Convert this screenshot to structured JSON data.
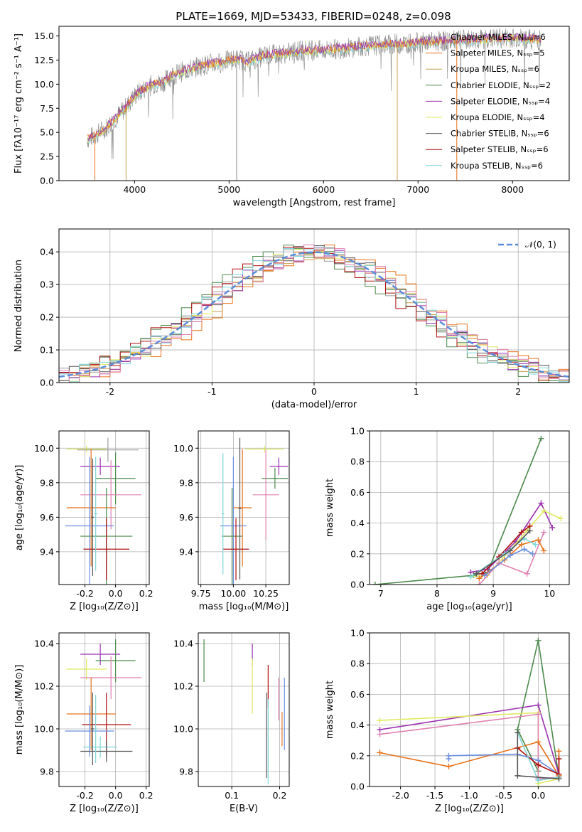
{
  "figure": {
    "title": "PLATE=1669, MJD=53433, FIBERID=0248, z=0.098",
    "colors": {
      "chabrier_miles": "#9e9e9e",
      "salpeter_miles": "#e8711a",
      "kroupa_miles": "#c8a050",
      "chabrier_elodie": "#4c8a4c",
      "salpeter_elodie": "#9b30b0",
      "kroupa_elodie": "#e0ea60",
      "chabrier_stelib": "#555555",
      "salpeter_stelib": "#b01010",
      "kroupa_stelib": "#7fd4d8",
      "normal_curve": "#5b8ddb",
      "extra_pink": "#e080b0",
      "extra_blue": "#6a8fe0"
    }
  },
  "chart_data": [
    {
      "id": "spectrum",
      "type": "line",
      "title": "PLATE=1669, MJD=53433, FIBERID=0248, z=0.098",
      "xlabel": "wavelength [Angstrom, rest frame]",
      "ylabel": "Flux [fλ10⁻¹⁷ erg cm⁻² s⁻¹ A⁻¹]",
      "xlim": [
        3200,
        8600
      ],
      "ylim": [
        0,
        16
      ],
      "xticks": [
        4000,
        5000,
        6000,
        7000,
        8000
      ],
      "yticks": [
        0.0,
        2.5,
        5.0,
        7.5,
        10.0,
        12.5,
        15.0
      ],
      "legend_position": "top-right",
      "legend": [
        {
          "label": "Chabrier MILES, Nₛₛₚ=6",
          "color": "#9e9e9e"
        },
        {
          "label": "Salpeter MILES, Nₛₛₚ=5",
          "color": "#e8711a"
        },
        {
          "label": "Kroupa MILES, Nₛₛₚ=6",
          "color": "#c8a050"
        },
        {
          "label": "Chabrier ELODIE, Nₛₛₚ=2",
          "color": "#4c8a4c"
        },
        {
          "label": "Salpeter ELODIE, Nₛₛₚ=4",
          "color": "#9b30b0"
        },
        {
          "label": "Kroupa ELODIE, Nₛₛₚ=4",
          "color": "#e0ea60"
        },
        {
          "label": "Chabrier STELIB, Nₛₛₚ=6",
          "color": "#555555"
        },
        {
          "label": "Salpeter STELIB, Nₛₛₚ=6",
          "color": "#b01010"
        },
        {
          "label": "Kroupa STELIB, Nₛₛₚ=6",
          "color": "#7fd4d8"
        }
      ],
      "continuum_points": [
        [
          3500,
          4.3
        ],
        [
          3600,
          4.8
        ],
        [
          3700,
          5.5
        ],
        [
          3800,
          6.5
        ],
        [
          3900,
          7.5
        ],
        [
          4000,
          8.8
        ],
        [
          4100,
          9.5
        ],
        [
          4200,
          10.0
        ],
        [
          4300,
          10.2
        ],
        [
          4400,
          10.9
        ],
        [
          4500,
          11.3
        ],
        [
          4600,
          11.6
        ],
        [
          4700,
          11.9
        ],
        [
          4800,
          12.1
        ],
        [
          4900,
          12.2
        ],
        [
          5000,
          12.5
        ],
        [
          5100,
          12.6
        ],
        [
          5200,
          12.3
        ],
        [
          5300,
          12.7
        ],
        [
          5400,
          13.0
        ],
        [
          5500,
          13.1
        ],
        [
          5600,
          13.2
        ],
        [
          5800,
          13.5
        ],
        [
          6000,
          13.5
        ],
        [
          6200,
          13.7
        ],
        [
          6500,
          14.0
        ],
        [
          6800,
          14.2
        ],
        [
          7000,
          14.3
        ],
        [
          7200,
          14.4
        ],
        [
          7500,
          14.6
        ],
        [
          7800,
          14.7
        ],
        [
          8000,
          14.8
        ],
        [
          8300,
          14.6
        ]
      ],
      "spikes": [
        [
          3580,
          0.0
        ],
        [
          3910,
          0.0
        ],
        [
          5080,
          0.0
        ],
        [
          6780,
          0.0
        ],
        [
          7410,
          0.0
        ]
      ]
    },
    {
      "id": "residuals",
      "type": "line",
      "xlabel": "(data-model)/error",
      "ylabel": "Normed distribution",
      "xlim": [
        -2.5,
        2.5
      ],
      "ylim": [
        0,
        0.47
      ],
      "xticks": [
        -2,
        -1,
        0,
        1,
        2
      ],
      "yticks": [
        0.0,
        0.1,
        0.2,
        0.3,
        0.4
      ],
      "grid": true,
      "legend_position": "top-right",
      "legend": [
        {
          "label": "𝒩(0, 1)",
          "color": "#5b8ddb"
        }
      ],
      "normal": {
        "mean": 0,
        "std": 1
      }
    },
    {
      "id": "age_vs_Z",
      "type": "scatter",
      "xlabel": "Z [log₁₀(Z/Z⊙)]",
      "ylabel": "age  [log₁₀(age/yr)]",
      "xlim": [
        -0.37,
        0.22
      ],
      "ylim": [
        9.21,
        10.1
      ],
      "xticks": [
        -0.2,
        0.0,
        0.2
      ],
      "yticks": [
        9.4,
        9.6,
        9.8,
        10.0
      ],
      "grid": true,
      "points": [
        {
          "x": -0.19,
          "y": 9.995,
          "x_err": 0.13,
          "y_err": 0.02,
          "color": "#e0ea60"
        },
        {
          "x": -0.1,
          "y": 9.895,
          "x_err": 0.13,
          "y_err": 0.05,
          "color": "#9b30b0"
        },
        {
          "x": -0.05,
          "y": 9.99,
          "x_err": 0.2,
          "y_err": 0.07,
          "color": "#9e9e9e"
        },
        {
          "x": 0.0,
          "y": 9.825,
          "x_err": 0.13,
          "y_err": 0.15,
          "color": "#4c8a4c"
        },
        {
          "x": -0.03,
          "y": 9.73,
          "x_err": 0.2,
          "y_err": 0.2,
          "color": "#e080b0"
        },
        {
          "x": -0.16,
          "y": 9.655,
          "x_err": 0.16,
          "y_err": 0.34,
          "color": "#e8711a"
        },
        {
          "x": -0.17,
          "y": 9.55,
          "x_err": 0.16,
          "y_err": 0.4,
          "color": "#6a8fe0"
        },
        {
          "x": -0.06,
          "y": 9.49,
          "x_err": 0.17,
          "y_err": 0.28,
          "color": "#4c8a4c"
        },
        {
          "x": -0.06,
          "y": 9.415,
          "x_err": 0.15,
          "y_err": 0.18,
          "color": "#b01010"
        },
        {
          "x": -0.15,
          "y": 9.6,
          "x_err": 0.01,
          "y_err": 0.34,
          "color": "#555555"
        },
        {
          "x": -0.13,
          "y": 9.62,
          "x_err": 0.01,
          "y_err": 0.33,
          "color": "#7fd4d8"
        }
      ]
    },
    {
      "id": "age_vs_mass",
      "type": "scatter",
      "xlabel": "mass [log₁₀(M/M⊙)]",
      "ylabel": "",
      "xlim": [
        9.73,
        10.43
      ],
      "ylim": [
        9.21,
        10.1
      ],
      "xticks": [
        9.75,
        10.0,
        10.25
      ],
      "yticks": [
        9.4,
        9.6,
        9.8,
        10.0
      ],
      "grid": true,
      "points": [
        {
          "x": 10.24,
          "y": 9.995,
          "x_err": 0.15,
          "y_err": 0.02,
          "color": "#e0ea60"
        },
        {
          "x": 10.35,
          "y": 9.895,
          "x_err": 0.07,
          "y_err": 0.05,
          "color": "#9b30b0"
        },
        {
          "x": 10.32,
          "y": 9.825,
          "x_err": 0.1,
          "y_err": 0.06,
          "color": "#4c8a4c"
        },
        {
          "x": 10.25,
          "y": 9.73,
          "x_err": 0.1,
          "y_err": 0.26,
          "color": "#e080b0"
        },
        {
          "x": 10.07,
          "y": 9.655,
          "x_err": 0.07,
          "y_err": 0.34,
          "color": "#e8711a"
        },
        {
          "x": 10.0,
          "y": 9.55,
          "x_err": 0.1,
          "y_err": 0.4,
          "color": "#6a8fe0"
        },
        {
          "x": 9.99,
          "y": 9.49,
          "x_err": 0.08,
          "y_err": 0.28,
          "color": "#4c8a4c"
        },
        {
          "x": 10.02,
          "y": 9.415,
          "x_err": 0.1,
          "y_err": 0.18,
          "color": "#b01010"
        },
        {
          "x": 10.05,
          "y": 9.65,
          "x_err": 0.01,
          "y_err": 0.41,
          "color": "#555555"
        },
        {
          "x": 9.92,
          "y": 9.62,
          "x_err": 0.01,
          "y_err": 0.35,
          "color": "#7fd4d8"
        }
      ]
    },
    {
      "id": "mass_weight_vs_age",
      "type": "line",
      "xlabel": "age  [log₁₀(age/yr)]",
      "ylabel": "mass weight",
      "xlim": [
        6.8,
        10.35
      ],
      "ylim": [
        0,
        1.0
      ],
      "xticks": [
        7,
        8,
        9,
        10
      ],
      "yticks": [
        0.0,
        0.2,
        0.4,
        0.6,
        0.8,
        1.0
      ],
      "grid": true,
      "series": [
        {
          "color": "#4c8a4c",
          "x": [
            6.9,
            8.65,
            8.9,
            9.85
          ],
          "y": [
            0.0,
            0.06,
            0.08,
            0.95
          ]
        },
        {
          "color": "#9b30b0",
          "x": [
            8.6,
            8.9,
            9.4,
            9.85,
            10.05
          ],
          "y": [
            0.08,
            0.1,
            0.28,
            0.53,
            0.37
          ]
        },
        {
          "color": "#e0ea60",
          "x": [
            8.6,
            8.9,
            9.6,
            9.9,
            10.2
          ],
          "y": [
            0.05,
            0.06,
            0.35,
            0.48,
            0.43
          ]
        },
        {
          "color": "#e080b0",
          "x": [
            8.75,
            9.1,
            9.6,
            9.9
          ],
          "y": [
            0.0,
            0.14,
            0.07,
            0.34
          ]
        },
        {
          "color": "#e8711a",
          "x": [
            8.75,
            9.2,
            9.5,
            9.8,
            9.9
          ],
          "y": [
            0.04,
            0.16,
            0.26,
            0.29,
            0.22
          ]
        },
        {
          "color": "#b01010",
          "x": [
            8.8,
            9.1,
            9.5,
            9.65
          ],
          "y": [
            0.07,
            0.18,
            0.34,
            0.38
          ]
        },
        {
          "color": "#6a8fe0",
          "x": [
            8.85,
            9.3,
            9.55,
            9.7
          ],
          "y": [
            0.06,
            0.19,
            0.23,
            0.2
          ]
        },
        {
          "color": "#7fd4d8",
          "x": [
            8.6,
            9.2,
            9.55,
            9.75
          ],
          "y": [
            0.05,
            0.2,
            0.3,
            0.26
          ]
        },
        {
          "color": "#555555",
          "x": [
            8.7,
            9.3,
            9.65
          ],
          "y": [
            0.07,
            0.22,
            0.35
          ]
        }
      ]
    },
    {
      "id": "mass_vs_Z",
      "type": "scatter",
      "xlabel": "Z [log₁₀(Z/Z⊙)]",
      "ylabel": "mass [log₁₀(M/M⊙)]",
      "xlim": [
        -0.37,
        0.22
      ],
      "ylim": [
        9.73,
        10.45
      ],
      "xticks": [
        -0.2,
        0.0,
        0.2
      ],
      "yticks": [
        9.8,
        10.0,
        10.2,
        10.4
      ],
      "grid": true,
      "points": [
        {
          "x": -0.1,
          "y": 10.35,
          "x_err": 0.13,
          "y_err": 0.05,
          "color": "#9b30b0"
        },
        {
          "x": 0.0,
          "y": 10.32,
          "x_err": 0.13,
          "y_err": 0.1,
          "color": "#4c8a4c"
        },
        {
          "x": -0.19,
          "y": 10.28,
          "x_err": 0.13,
          "y_err": 0.05,
          "color": "#e0ea60"
        },
        {
          "x": -0.03,
          "y": 10.24,
          "x_err": 0.2,
          "y_err": 0.1,
          "color": "#e080b0"
        },
        {
          "x": -0.16,
          "y": 10.07,
          "x_err": 0.16,
          "y_err": 0.17,
          "color": "#e8711a"
        },
        {
          "x": -0.06,
          "y": 10.02,
          "x_err": 0.16,
          "y_err": 0.15,
          "color": "#b01010"
        },
        {
          "x": -0.17,
          "y": 9.99,
          "x_err": 0.16,
          "y_err": 0.12,
          "color": "#6a8fe0"
        },
        {
          "x": -0.1,
          "y": 9.915,
          "x_err": 0.11,
          "y_err": 0.05,
          "color": "#7fd4d8"
        },
        {
          "x": -0.06,
          "y": 9.895,
          "x_err": 0.17,
          "y_err": 0.05,
          "color": "#555555"
        },
        {
          "x": -0.15,
          "y": 10.0,
          "x_err": 0.01,
          "y_err": 0.17,
          "color": "#555555"
        },
        {
          "x": -0.13,
          "y": 10.0,
          "x_err": 0.01,
          "y_err": 0.16,
          "color": "#7fd4d8"
        }
      ]
    },
    {
      "id": "mass_vs_ebv",
      "type": "scatter",
      "xlabel": "E(B-V)",
      "ylabel": "",
      "xlim": [
        0.03,
        0.22
      ],
      "ylim": [
        9.73,
        10.45
      ],
      "xticks": [
        0.1,
        0.2
      ],
      "yticks": [
        9.8,
        10.0,
        10.2,
        10.4
      ],
      "grid": true,
      "points": [
        {
          "x": 0.042,
          "y": 10.32,
          "x_err": 0.0,
          "y_err": 0.1,
          "color": "#4c8a4c"
        },
        {
          "x": 0.143,
          "y": 10.35,
          "x_err": 0.0,
          "y_err": 0.05,
          "color": "#9b30b0"
        },
        {
          "x": 0.143,
          "y": 10.2,
          "x_err": 0.0,
          "y_err": 0.13,
          "color": "#e0ea60"
        },
        {
          "x": 0.176,
          "y": 10.2,
          "x_err": 0.0,
          "y_err": 0.1,
          "color": "#b01010"
        },
        {
          "x": 0.173,
          "y": 9.97,
          "x_err": 0.0,
          "y_err": 0.2,
          "color": "#555555"
        },
        {
          "x": 0.176,
          "y": 9.94,
          "x_err": 0.0,
          "y_err": 0.2,
          "color": "#7fd4d8"
        },
        {
          "x": 0.198,
          "y": 10.14,
          "x_err": 0.0,
          "y_err": 0.1,
          "color": "#e080b0"
        },
        {
          "x": 0.21,
          "y": 10.07,
          "x_err": 0.0,
          "y_err": 0.17,
          "color": "#6a8fe0"
        },
        {
          "x": 0.205,
          "y": 10.0,
          "x_err": 0.0,
          "y_err": 0.08,
          "color": "#e8711a"
        }
      ]
    },
    {
      "id": "mass_weight_vs_Z",
      "type": "line",
      "xlabel": "Z [log₁₀(Z/Z⊙)]",
      "ylabel": "mass weight",
      "xlim": [
        -2.45,
        0.45
      ],
      "ylim": [
        0,
        1.0
      ],
      "xticks": [
        -2.0,
        -1.5,
        -1.0,
        -0.5,
        0.0
      ],
      "yticks": [
        0.0,
        0.2,
        0.4,
        0.6,
        0.8,
        1.0
      ],
      "grid": true,
      "series": [
        {
          "color": "#4c8a4c",
          "x": [
            0.3,
            0.0,
            -0.3,
            0.0
          ],
          "y": [
            0.06,
            0.95,
            0.37,
            0.1
          ]
        },
        {
          "color": "#9b30b0",
          "x": [
            -2.3,
            0.0,
            0.3
          ],
          "y": [
            0.37,
            0.53,
            0.08
          ]
        },
        {
          "color": "#e0ea60",
          "x": [
            -2.3,
            0.0,
            0.0,
            0.3
          ],
          "y": [
            0.43,
            0.48,
            0.02,
            0.05
          ]
        },
        {
          "color": "#e080b0",
          "x": [
            -2.3,
            0.0,
            0.0,
            0.3
          ],
          "y": [
            0.34,
            0.47,
            0.05,
            0.06
          ]
        },
        {
          "color": "#e8711a",
          "x": [
            -2.3,
            -1.3,
            0.0,
            0.3,
            0.3
          ],
          "y": [
            0.22,
            0.13,
            0.29,
            0.07,
            0.23
          ]
        },
        {
          "color": "#6a8fe0",
          "x": [
            -1.3,
            -1.3,
            -0.3,
            0.0,
            0.3
          ],
          "y": [
            0.18,
            0.2,
            0.21,
            0.17,
            0.08
          ]
        },
        {
          "color": "#b01010",
          "x": [
            -0.3,
            0.0,
            0.3,
            0.3
          ],
          "y": [
            0.25,
            0.14,
            0.08,
            0.18
          ]
        },
        {
          "color": "#7fd4d8",
          "x": [
            -0.3,
            0.0,
            0.3
          ],
          "y": [
            0.35,
            0.04,
            0.06
          ]
        },
        {
          "color": "#555555",
          "x": [
            -0.3,
            -0.3,
            0.3
          ],
          "y": [
            0.35,
            0.07,
            0.05
          ]
        }
      ]
    }
  ]
}
